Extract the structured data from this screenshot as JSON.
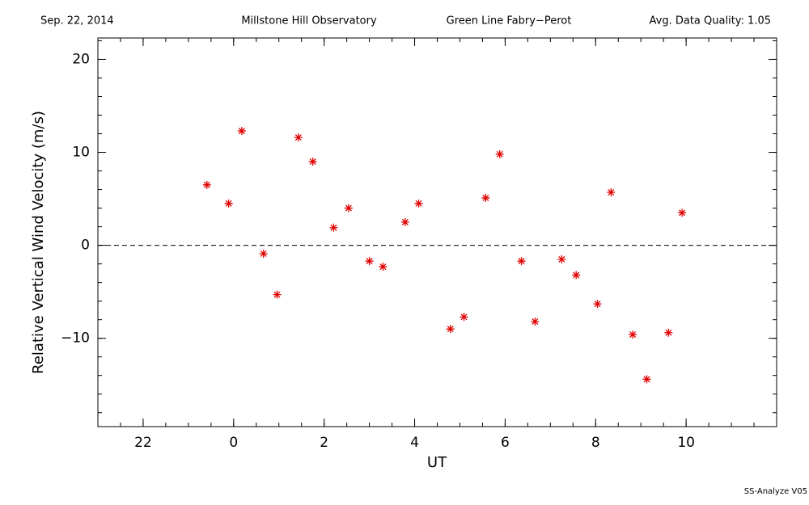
{
  "chart_data": {
    "type": "scatter",
    "header": {
      "date": "Sep. 22, 2014",
      "observatory": "Millstone Hill Observatory",
      "instrument": "Green Line Fabry−Perot",
      "quality": "Avg. Data Quality: 1.05"
    },
    "x_label": "UT",
    "y_label": "Relative Vertical Wind Velocity (m/s)",
    "footer": "SS-Analyze V05",
    "xlim": [
      -3,
      12
    ],
    "xticks": [
      {
        "value": -2,
        "label": "22"
      },
      0,
      2,
      4,
      6,
      8,
      10
    ],
    "x_minor_step": 0.5,
    "ylim": [
      -19.5,
      22.3
    ],
    "yticks": [
      {
        "value": -10,
        "label": "−10"
      },
      0,
      10,
      20
    ],
    "y_minor_step": 2,
    "hline": 0,
    "series": [
      {
        "color": "#e00000",
        "x": [
          -0.59,
          -0.11,
          0.18,
          0.66,
          0.96,
          1.43,
          1.75,
          2.21,
          2.54,
          3.0,
          3.3,
          3.79,
          4.09,
          4.79,
          5.09,
          5.57,
          5.88,
          6.36,
          6.66,
          7.25,
          7.57,
          8.04,
          8.34,
          8.82,
          9.13,
          9.61,
          9.91
        ],
        "values": [
          6.5,
          4.5,
          12.3,
          -0.9,
          -5.3,
          11.6,
          9.0,
          1.9,
          4.0,
          -1.7,
          -2.3,
          2.5,
          4.5,
          -9.0,
          -7.7,
          5.1,
          9.8,
          -1.7,
          -8.2,
          -1.5,
          -3.2,
          -6.3,
          5.7,
          -9.6,
          -14.4,
          -9.4,
          3.5
        ]
      }
    ]
  }
}
